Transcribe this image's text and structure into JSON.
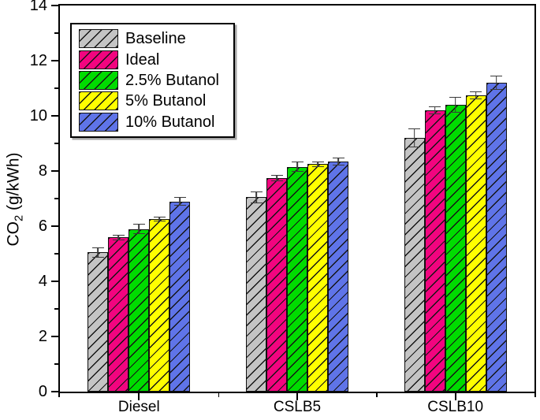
{
  "chart_data": {
    "type": "bar",
    "title": "",
    "ylabel": {
      "prefix": "CO",
      "sub": "2",
      "suffix": " (g/kWh)"
    },
    "categories": [
      "Diesel",
      "CSLB5",
      "CSLB10"
    ],
    "series": [
      {
        "name": "Baseline",
        "color": "#C4C4C4",
        "values": [
          5.05,
          7.05,
          9.2
        ],
        "errors": [
          0.18,
          0.22,
          0.33
        ]
      },
      {
        "name": "Ideal",
        "color": "#F2047F",
        "values": [
          5.6,
          7.75,
          10.2
        ],
        "errors": [
          0.1,
          0.12,
          0.15
        ]
      },
      {
        "name": "2.5% Butanol",
        "color": "#00DC00",
        "values": [
          5.9,
          8.15,
          10.4
        ],
        "errors": [
          0.18,
          0.18,
          0.28
        ]
      },
      {
        "name": "5% Butanol",
        "color": "#FFFF00",
        "values": [
          6.25,
          8.25,
          10.75
        ],
        "errors": [
          0.08,
          0.1,
          0.15
        ]
      },
      {
        "name": "10% Butanol",
        "color": "#5F74E8",
        "values": [
          6.9,
          8.35,
          11.2
        ],
        "errors": [
          0.15,
          0.15,
          0.25
        ]
      }
    ],
    "ylim": [
      0,
      14
    ],
    "yticks": [
      0,
      2,
      4,
      6,
      8,
      10,
      12,
      14
    ],
    "legend_position": "top-left",
    "grid": false,
    "hatch": "diagonal-forward",
    "error_bars": true,
    "colors": {
      "axis": "#000000",
      "hatch_line": "#141414",
      "error_bar": "#3a3a3a",
      "background": "#ffffff"
    }
  }
}
